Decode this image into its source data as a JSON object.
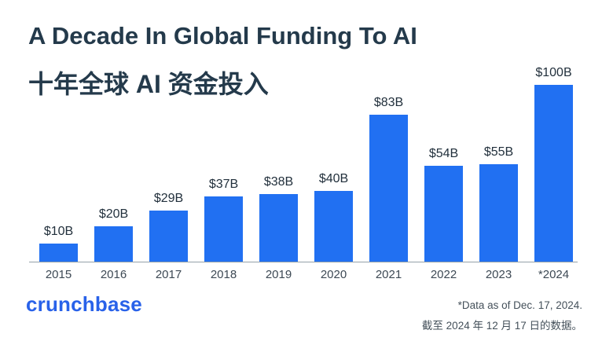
{
  "header": {
    "title_en": "A Decade In Global Funding To AI",
    "title_zh": "十年全球 AI 资金投入"
  },
  "chart_data": {
    "type": "bar",
    "title": "A Decade In Global Funding To AI",
    "subtitle": "十年全球 AI 资金投入",
    "categories": [
      "2015",
      "2016",
      "2017",
      "2018",
      "2019",
      "2020",
      "2021",
      "2022",
      "2023",
      "*2024"
    ],
    "values": [
      10,
      20,
      29,
      37,
      38,
      40,
      83,
      54,
      55,
      100
    ],
    "value_labels": [
      "$10B",
      "$20B",
      "$29B",
      "$37B",
      "$38B",
      "$40B",
      "$83B",
      "$54B",
      "$55B",
      "$100B"
    ],
    "unit": "USD billions",
    "xlabel": "",
    "ylabel": "",
    "ylim": [
      0,
      100
    ],
    "grid": false,
    "legend": "none",
    "bar_color": "#2170F2",
    "axis_line_color": "#94A0A8"
  },
  "footer": {
    "brand": "crunchbase",
    "footnote_en": "*Data as of Dec. 17, 2024.",
    "footnote_zh": "截至 2024 年 12 月 17 日的数据。"
  },
  "colors": {
    "title": "#243A4B",
    "bar": "#2170F2",
    "brand_blue": "#2962E9",
    "value_label": "#22303C",
    "year_label": "#3D4954"
  }
}
